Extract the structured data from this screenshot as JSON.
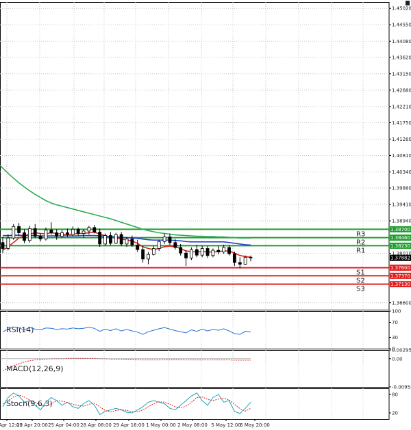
{
  "chart_data": {
    "type": "candlestick",
    "price_axis": {
      "range": [
        1.364,
        1.452
      ],
      "ticks": [
        "1.45020",
        "1.44550",
        "1.44080",
        "1.43620",
        "1.43150",
        "1.42680",
        "1.42210",
        "1.41750",
        "1.41280",
        "1.40810",
        "1.40340",
        "1.39880",
        "1.39410",
        "1.38940",
        "1.38010",
        "1.36600"
      ]
    },
    "x_labels": [
      "22 Apr 12:00",
      "23 Apr 20:00",
      "25 Apr 04:00",
      "28 Apr 08:00",
      "29 Apr 16:00",
      "1 May 00:00",
      "2 May 08:00",
      "5 May 12:00",
      "6 May 20:00"
    ],
    "current_price": "1.37882",
    "levels": [
      {
        "name": "R3",
        "value": 1.387,
        "label": "1.38700",
        "color": "#1e9e2e"
      },
      {
        "name": "R2",
        "value": 1.3846,
        "label": "1.38460",
        "color": "#1e9e2e"
      },
      {
        "name": "R1",
        "value": 1.3823,
        "label": "1.38230",
        "color": "#1e9e2e"
      },
      {
        "name": "S1",
        "value": 1.376,
        "label": "1.37600",
        "color": "#e02020"
      },
      {
        "name": "S2",
        "value": 1.3737,
        "label": "1.37370",
        "color": "#e02020"
      },
      {
        "name": "S3",
        "value": 1.3713,
        "label": "1.37130",
        "color": "#e02020"
      }
    ],
    "candles": [
      [
        1.3832,
        1.3848,
        1.3802,
        1.3815
      ],
      [
        1.3815,
        1.3855,
        1.381,
        1.3845
      ],
      [
        1.3845,
        1.3885,
        1.384,
        1.3878
      ],
      [
        1.3878,
        1.3888,
        1.385,
        1.386
      ],
      [
        1.386,
        1.387,
        1.383,
        1.3838
      ],
      [
        1.3838,
        1.388,
        1.3832,
        1.3872
      ],
      [
        1.3872,
        1.3885,
        1.3845,
        1.385
      ],
      [
        1.385,
        1.3858,
        1.3835,
        1.3842
      ],
      [
        1.3842,
        1.3875,
        1.3838,
        1.3868
      ],
      [
        1.3868,
        1.389,
        1.3855,
        1.386
      ],
      [
        1.386,
        1.387,
        1.384,
        1.385
      ],
      [
        1.385,
        1.3868,
        1.3845,
        1.386
      ],
      [
        1.386,
        1.3872,
        1.3848,
        1.3855
      ],
      [
        1.3855,
        1.3878,
        1.385,
        1.387
      ],
      [
        1.387,
        1.3875,
        1.3852,
        1.3858
      ],
      [
        1.3858,
        1.387,
        1.3845,
        1.3865
      ],
      [
        1.3865,
        1.388,
        1.3855,
        1.3875
      ],
      [
        1.3875,
        1.3882,
        1.3858,
        1.3862
      ],
      [
        1.3862,
        1.3872,
        1.382,
        1.3828
      ],
      [
        1.3828,
        1.3858,
        1.3822,
        1.3852
      ],
      [
        1.3852,
        1.3862,
        1.3825,
        1.383
      ],
      [
        1.383,
        1.386,
        1.3828,
        1.3855
      ],
      [
        1.3855,
        1.3862,
        1.3822,
        1.3828
      ],
      [
        1.3828,
        1.3848,
        1.382,
        1.3842
      ],
      [
        1.3842,
        1.3852,
        1.382,
        1.3825
      ],
      [
        1.3825,
        1.384,
        1.3805,
        1.3812
      ],
      [
        1.3812,
        1.3822,
        1.3775,
        1.3785
      ],
      [
        1.3785,
        1.3805,
        1.377,
        1.3798
      ],
      [
        1.3798,
        1.3822,
        1.3795,
        1.3815
      ],
      [
        1.3815,
        1.384,
        1.3808,
        1.3835
      ],
      [
        1.3835,
        1.3858,
        1.3828,
        1.3848
      ],
      [
        1.3848,
        1.3858,
        1.3825,
        1.3832
      ],
      [
        1.3832,
        1.3842,
        1.3812,
        1.3818
      ],
      [
        1.3818,
        1.3828,
        1.3795,
        1.3802
      ],
      [
        1.3802,
        1.381,
        1.3765,
        1.3788
      ],
      [
        1.3788,
        1.3818,
        1.3782,
        1.3812
      ],
      [
        1.3812,
        1.3826,
        1.379,
        1.3796
      ],
      [
        1.3796,
        1.3822,
        1.379,
        1.3815
      ],
      [
        1.3815,
        1.3822,
        1.3788,
        1.3795
      ],
      [
        1.3795,
        1.3815,
        1.379,
        1.381
      ],
      [
        1.381,
        1.3822,
        1.3798,
        1.3805
      ],
      [
        1.3805,
        1.3826,
        1.38,
        1.3818
      ],
      [
        1.3818,
        1.3825,
        1.3795,
        1.38
      ],
      [
        1.38,
        1.3806,
        1.3765,
        1.3775
      ],
      [
        1.3775,
        1.379,
        1.3758,
        1.377
      ],
      [
        1.377,
        1.3795,
        1.3768,
        1.379
      ],
      [
        1.379,
        1.3795,
        1.3778,
        1.3788
      ]
    ],
    "moving_averages": [
      {
        "color": "#e02020",
        "values": [
          1.381,
          1.382,
          1.3832,
          1.3845,
          1.3852,
          1.3856,
          1.386,
          1.3858,
          1.3857,
          1.386,
          1.3858,
          1.3856,
          1.3855,
          1.3856,
          1.3858,
          1.3858,
          1.386,
          1.3862,
          1.3856,
          1.3852,
          1.3848,
          1.3846,
          1.3842,
          1.384,
          1.3836,
          1.383,
          1.382,
          1.3815,
          1.3812,
          1.3815,
          1.382,
          1.3822,
          1.382,
          1.3815,
          1.3808,
          1.3806,
          1.3805,
          1.3806,
          1.3805,
          1.3805,
          1.3806,
          1.3808,
          1.3808,
          1.3802,
          1.3795,
          1.3792,
          1.379
        ]
      },
      {
        "color": "#2a3fd0",
        "values": [
          1.3852,
          1.3852,
          1.3853,
          1.3853,
          1.3852,
          1.3852,
          1.3852,
          1.3851,
          1.3851,
          1.3851,
          1.3851,
          1.3851,
          1.3851,
          1.3851,
          1.3851,
          1.3852,
          1.3852,
          1.3852,
          1.3851,
          1.385,
          1.3849,
          1.3848,
          1.3847,
          1.3846,
          1.3845,
          1.3844,
          1.3842,
          1.384,
          1.3839,
          1.3839,
          1.3839,
          1.3839,
          1.3838,
          1.3837,
          1.3835,
          1.3834,
          1.3834,
          1.3834,
          1.3834,
          1.3834,
          1.3834,
          1.3834,
          1.3832,
          1.383,
          1.3828,
          1.3826,
          1.3825
        ]
      },
      {
        "color": "#2eaa55",
        "values": [
          1.4045,
          1.403,
          1.4016,
          1.4003,
          1.3991,
          1.398,
          1.397,
          1.3961,
          1.3952,
          1.3945,
          1.394,
          1.3936,
          1.3932,
          1.3928,
          1.3924,
          1.392,
          1.3916,
          1.3912,
          1.3908,
          1.3904,
          1.39,
          1.3895,
          1.389,
          1.3885,
          1.388,
          1.3875,
          1.387,
          1.3866,
          1.3863,
          1.386,
          1.3858,
          1.3856,
          1.3854,
          1.3853,
          1.3852,
          1.3851,
          1.385,
          1.385,
          1.3849,
          1.3849,
          1.3848,
          1.3848,
          1.3847,
          1.3846,
          1.3845,
          1.3845,
          1.3845
        ]
      }
    ],
    "indicators": [
      {
        "name": "RSI(14)",
        "ticks": [
          "100",
          "70",
          "30",
          "0"
        ],
        "range": [
          0,
          100
        ],
        "values": [
          45,
          52,
          58,
          55,
          50,
          56,
          52,
          50,
          55,
          54,
          51,
          53,
          52,
          55,
          53,
          54,
          57,
          54,
          46,
          52,
          48,
          53,
          47,
          51,
          47,
          44,
          38,
          45,
          49,
          53,
          56,
          52,
          48,
          45,
          42,
          50,
          46,
          52,
          47,
          51,
          49,
          53,
          47,
          40,
          38,
          46,
          44
        ]
      },
      {
        "name": "MACD(12,26,9)",
        "ticks": [
          "0.002952",
          "0.00",
          "-0.009528"
        ],
        "range": [
          -0.009528,
          0.002952
        ],
        "values": [
          -0.004,
          -0.0032,
          -0.0024,
          -0.0017,
          -0.0011,
          -0.0007,
          -0.0004,
          -0.0002,
          -0.0001,
          0.0,
          0.0,
          0.0,
          0.0001,
          0.0001,
          0.0001,
          0.0001,
          0.0001,
          0.0001,
          0.0,
          0.0,
          -0.0001,
          -0.0001,
          -0.0001,
          -0.0002,
          -0.0002,
          -0.0003,
          -0.0004,
          -0.0004,
          -0.0004,
          -0.0004,
          -0.0003,
          -0.0003,
          -0.0003,
          -0.0003,
          -0.0004,
          -0.0004,
          -0.0004,
          -0.0004,
          -0.0004,
          -0.0004,
          -0.0004,
          -0.0004,
          -0.0004,
          -0.0005,
          -0.0005,
          -0.0005,
          -0.0005
        ]
      },
      {
        "name": "Stoch(9,6,3)",
        "ticks": [
          "80",
          "20"
        ],
        "range": [
          0,
          100
        ],
        "k": [
          40,
          70,
          85,
          75,
          55,
          60,
          45,
          30,
          55,
          70,
          60,
          45,
          55,
          40,
          35,
          50,
          60,
          45,
          15,
          25,
          30,
          35,
          30,
          22,
          20,
          30,
          40,
          55,
          60,
          55,
          50,
          35,
          30,
          45,
          60,
          75,
          85,
          60,
          45,
          70,
          80,
          55,
          60,
          25,
          18,
          35,
          55
        ],
        "d": [
          50,
          60,
          72,
          78,
          72,
          62,
          54,
          45,
          42,
          50,
          60,
          58,
          54,
          48,
          44,
          42,
          48,
          52,
          40,
          28,
          23,
          28,
          30,
          28,
          24,
          24,
          30,
          40,
          50,
          56,
          55,
          48,
          40,
          36,
          42,
          55,
          70,
          72,
          64,
          60,
          65,
          68,
          62,
          48,
          34,
          26,
          35
        ]
      }
    ]
  }
}
